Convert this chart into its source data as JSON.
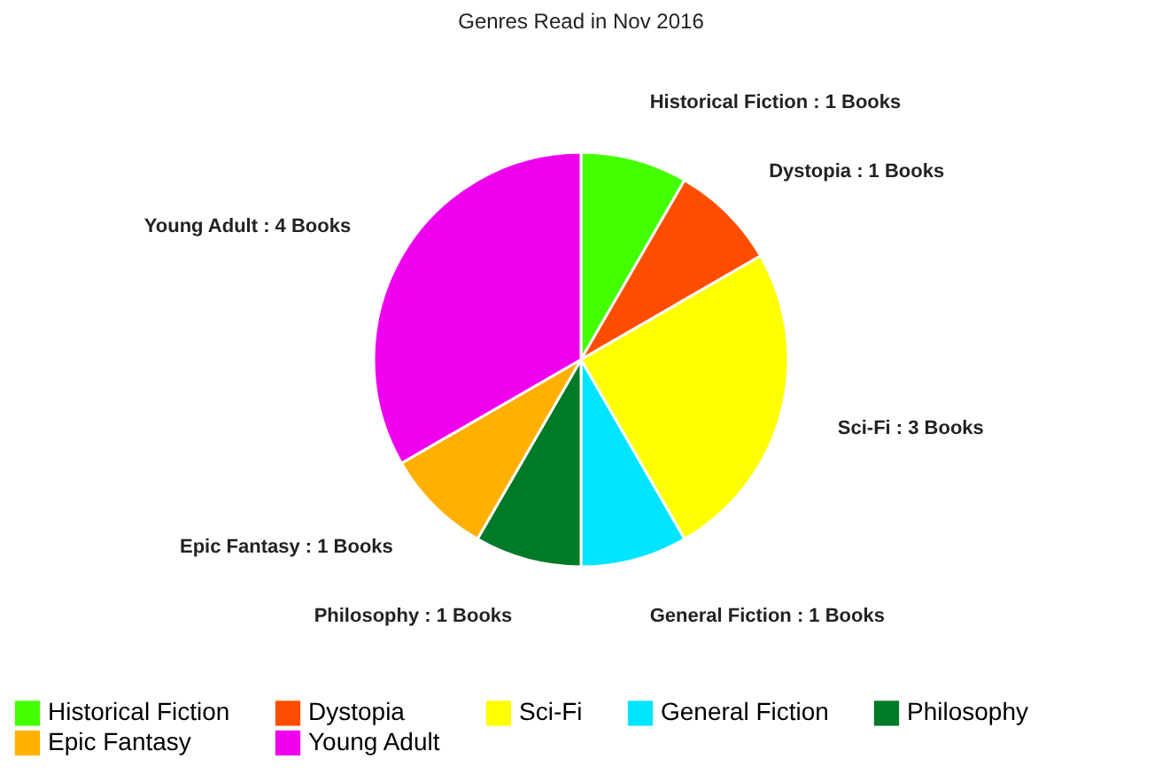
{
  "chart_data": {
    "type": "pie",
    "title": "Genres Read in Nov 2016",
    "categories": [
      "Historical Fiction",
      "Dystopia",
      "Sci-Fi",
      "General Fiction",
      "Philosophy",
      "Epic Fantasy",
      "Young Adult"
    ],
    "values": [
      1,
      1,
      3,
      1,
      1,
      1,
      4
    ],
    "colors": [
      "#44ff00",
      "#ff4d00",
      "#ffff00",
      "#00e5ff",
      "#007a27",
      "#ffb000",
      "#ee00ee"
    ],
    "value_labels": [
      "Historical Fiction : 1 Books",
      "Dystopia : 1 Books",
      "Sci-Fi : 3 Books",
      "General Fiction : 1 Books",
      "Philosophy : 1 Books",
      "Epic Fantasy : 1 Books",
      "Young Adult : 4 Books"
    ],
    "legend": "bottom"
  }
}
